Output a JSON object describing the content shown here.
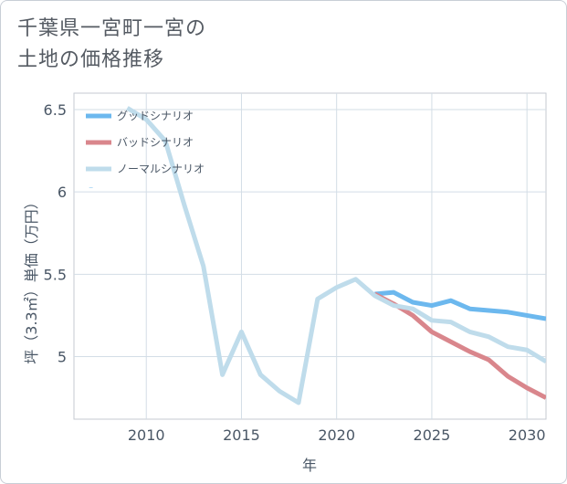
{
  "title_lines": [
    "千葉県一宮町一宮の",
    "土地の価格推移"
  ],
  "chart_data": {
    "type": "line",
    "xlabel": "年",
    "ylabel": "坪（3.3㎡）単価（万円）",
    "xlim": [
      2006.2,
      2031
    ],
    "ylim": [
      4.62,
      6.6
    ],
    "xticks": [
      2010,
      2015,
      2020,
      2025,
      2030
    ],
    "xtick_labels": [
      "2010",
      "2015",
      "2020",
      "2025",
      "2030"
    ],
    "yticks": [
      5,
      5.5,
      6,
      6.5
    ],
    "ytick_labels": [
      "5",
      "5.5",
      "6",
      "6.5"
    ],
    "legend_position": "top-left",
    "stray_mark": "⁻",
    "series": [
      {
        "name": "グッドシナリオ",
        "color": "#6cb8ee",
        "x": [
          2022,
          2023,
          2024,
          2025,
          2026,
          2027,
          2028,
          2029,
          2030,
          2031
        ],
        "values": [
          5.38,
          5.39,
          5.33,
          5.31,
          5.34,
          5.29,
          5.28,
          5.27,
          5.25,
          5.23
        ]
      },
      {
        "name": "バッドシナリオ",
        "color": "#d9868c",
        "x": [
          2022,
          2023,
          2024,
          2025,
          2026,
          2027,
          2028,
          2029,
          2030,
          2031
        ],
        "values": [
          5.38,
          5.32,
          5.25,
          5.15,
          5.09,
          5.03,
          4.98,
          4.88,
          4.81,
          4.75
        ]
      },
      {
        "name": "ノーマルシナリオ",
        "color": "#bfdceb",
        "x": [
          2009,
          2010,
          2011,
          2012,
          2013,
          2014,
          2015,
          2016,
          2017,
          2018,
          2019,
          2020,
          2021,
          2022,
          2023,
          2024,
          2025,
          2026,
          2027,
          2028,
          2029,
          2030,
          2031
        ],
        "values": [
          6.51,
          6.44,
          6.31,
          5.92,
          5.55,
          4.89,
          5.15,
          4.89,
          4.79,
          4.72,
          5.35,
          5.42,
          5.47,
          5.37,
          5.31,
          5.29,
          5.22,
          5.21,
          5.15,
          5.12,
          5.06,
          5.04,
          4.97
        ]
      }
    ]
  }
}
